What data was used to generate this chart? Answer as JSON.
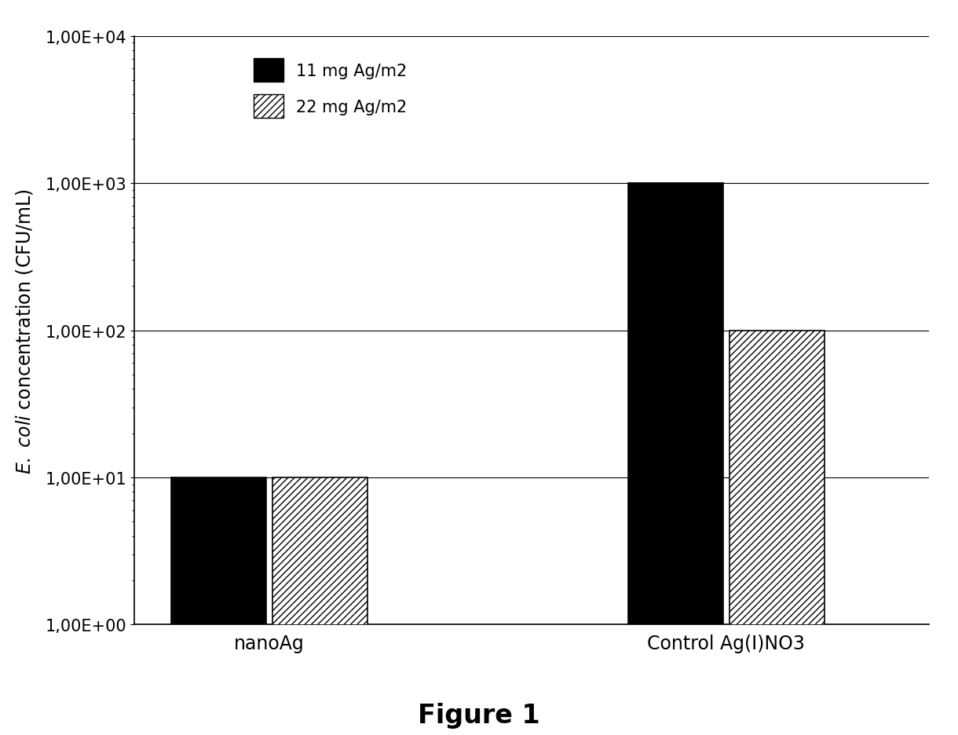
{
  "categories": [
    "nanoAg",
    "Control Ag(I)NO3"
  ],
  "series": [
    {
      "label": "11 mg Ag/m2",
      "values": [
        10,
        1000
      ],
      "color": "#000000",
      "hatch": ""
    },
    {
      "label": "22 mg Ag/m2",
      "values": [
        10,
        100
      ],
      "color": "#ffffff",
      "hatch": "////"
    }
  ],
  "ylabel": "E. coli concentration (CFU/mL)",
  "figure_label": "Figure 1",
  "background_color": "#ffffff",
  "bar_width": 0.28,
  "ytick_labels": {
    "1": "1,00E+00",
    "10": "1,00E+01",
    "100": "1,00E+02",
    "1000": "1,00E+03",
    "10000": "1,00E+04"
  }
}
